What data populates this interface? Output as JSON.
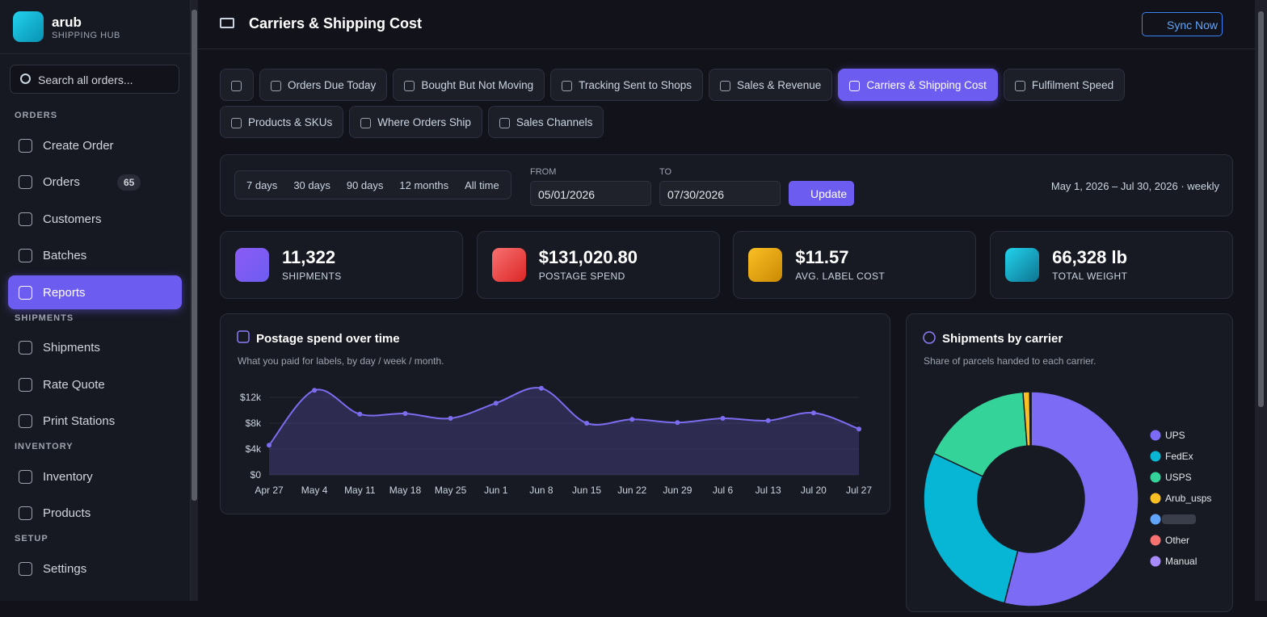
{
  "brand": {
    "name": "arub",
    "tagline": "SHIPPING HUB"
  },
  "search_placeholder": "Search all orders...",
  "sidebar": {
    "sections": [
      {
        "title": "ORDERS",
        "items": [
          "Create Order",
          "Orders",
          "Customers",
          "Batches",
          "Reports"
        ]
      },
      {
        "title": "SHIPMENTS",
        "items": [
          "Shipments",
          "Rate Quote",
          "Print Stations"
        ]
      },
      {
        "title": "INVENTORY",
        "items": [
          "Inventory",
          "Products"
        ]
      },
      {
        "title": "SETUP",
        "items": [
          "Settings"
        ]
      }
    ],
    "orders_badge": 65
  },
  "header": {
    "title": "Carriers & Shipping Cost",
    "sync": "Sync Now"
  },
  "tabs": [
    "Orders Due Today",
    "Bought But Not Moving",
    "Tracking Sent to Shops",
    "Sales & Revenue",
    "Carriers & Shipping Cost",
    "Fulfilment Speed",
    "Products & SKUs",
    "Where Orders Ship",
    "Sales Channels"
  ],
  "filters": {
    "ranges": [
      "7 days",
      "30 days",
      "90 days",
      "12 months",
      "All time"
    ],
    "from_label": "FROM",
    "from": "05/01/2026",
    "to_label": "TO",
    "to": "07/30/2026",
    "update": "Update",
    "summary": "May 1, 2026 – Jul 30, 2026 · weekly"
  },
  "kpis": [
    {
      "value": "11,322",
      "label": "SHIPMENTS"
    },
    {
      "value": "$131,020.80",
      "label": "POSTAGE SPEND"
    },
    {
      "value": "$11.57",
      "label": "AVG. LABEL COST"
    },
    {
      "value": "66,328 lb",
      "label": "TOTAL WEIGHT"
    }
  ],
  "chart_data": [
    {
      "type": "line",
      "title": "Postage spend over time",
      "subtitle": "What you paid for labels, by day / week / month.",
      "categories": [
        "Apr 27",
        "May 4",
        "May 11",
        "May 18",
        "May 25",
        "Jun 1",
        "Jun 8",
        "Jun 15",
        "Jun 22",
        "Jun 29",
        "Jul 6",
        "Jul 13",
        "Jul 20",
        "Jul 27"
      ],
      "values": [
        4600,
        13100,
        9400,
        9500,
        8750,
        11100,
        13400,
        8000,
        8600,
        8100,
        8750,
        8400,
        9600,
        7100
      ],
      "color": "#7c6cf0",
      "ylim": [
        0,
        14000
      ],
      "yticks": [
        {
          "value": 0,
          "label": "$0"
        },
        {
          "value": 4000,
          "label": "$4k"
        },
        {
          "value": 8000,
          "label": "$8k"
        },
        {
          "value": 12000,
          "label": "$12k"
        }
      ],
      "grid": true
    },
    {
      "type": "pie",
      "title": "Shipments by carrier",
      "subtitle": "Share of parcels handed to each carrier.",
      "categories": [
        "UPS",
        "FedEx",
        "USPS",
        "Arub_usps",
        null,
        "Other",
        "Manual"
      ],
      "values": [
        54,
        28,
        16.8,
        1,
        0.1,
        0.05,
        0.05
      ],
      "colors": [
        "#7c6cf5",
        "#06b6d4",
        "#34d399",
        "#fbbf24",
        "#60a5fa",
        "#f87171",
        "#a78bfa"
      ],
      "legend": "right"
    }
  ]
}
